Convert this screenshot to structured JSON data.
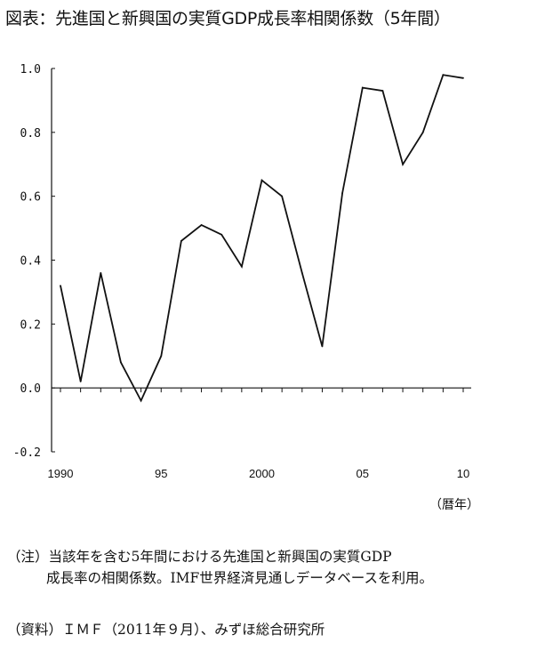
{
  "title": "図表：先進国と新興国の実質GDP成長率相関係数（5年間）",
  "chart_data": {
    "type": "line",
    "title": "図表：先進国と新興国の実質GDP成長率相関係数（5年間）",
    "x": [
      1990,
      1991,
      1992,
      1993,
      1994,
      1995,
      1996,
      1997,
      1998,
      1999,
      2000,
      2001,
      2002,
      2003,
      2004,
      2005,
      2006,
      2007,
      2008,
      2009,
      2010
    ],
    "values": [
      0.32,
      0.02,
      0.36,
      0.08,
      -0.04,
      0.1,
      0.46,
      0.51,
      0.48,
      0.38,
      0.65,
      0.6,
      0.36,
      0.13,
      0.61,
      0.94,
      0.93,
      0.7,
      0.8,
      0.98,
      0.97
    ],
    "ylim": [
      -0.2,
      1.0
    ],
    "yticks": [
      "1.0",
      "0.8",
      "0.6",
      "0.4",
      "0.2",
      "0.0",
      "-0.2"
    ],
    "ytick_values": [
      1.0,
      0.8,
      0.6,
      0.4,
      0.2,
      0.0,
      -0.2
    ],
    "xticks": [
      "1990",
      "95",
      "2000",
      "05",
      "10"
    ],
    "xtick_values": [
      1990,
      1995,
      2000,
      2005,
      2010
    ],
    "xlabel": "（暦年）",
    "ylabel": "",
    "line_color": "#111111"
  },
  "notes": {
    "note_line1": "（注）当該年を含む5年間における先進国と新興国の実質GDP",
    "note_line2": "成長率の相関係数。IMF世界経済見通しデータベースを利用。",
    "source": "（資料）ＩＭＦ（2011年９月）、みずほ総合研究所"
  }
}
